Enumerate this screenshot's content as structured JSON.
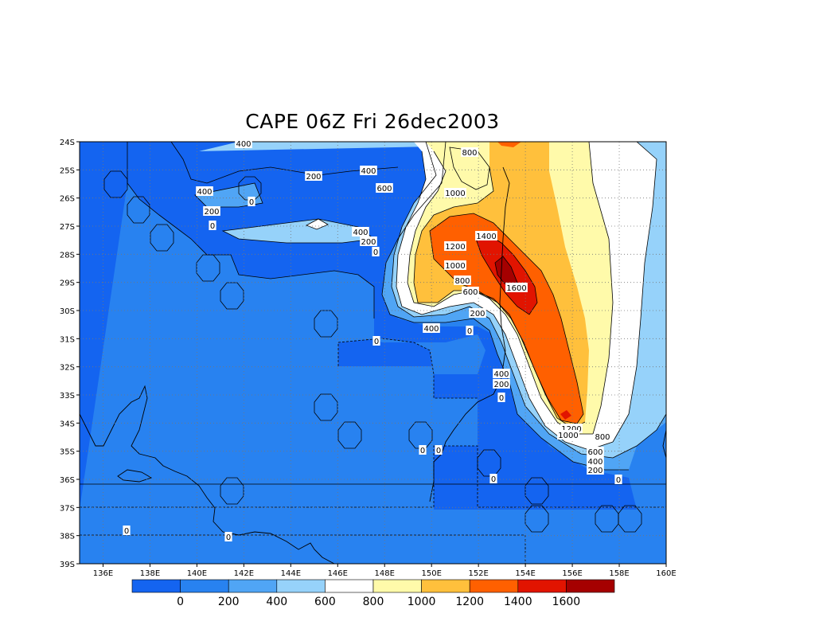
{
  "title": "CAPE 06Z Fri 26dec2003",
  "map": {
    "lat_labels": [
      "24S",
      "25S",
      "26S",
      "27S",
      "28S",
      "29S",
      "30S",
      "31S",
      "32S",
      "33S",
      "34S",
      "35S",
      "36S",
      "37S",
      "38S",
      "39S"
    ],
    "lon_labels": [
      "136E",
      "138E",
      "140E",
      "142E",
      "144E",
      "146E",
      "148E",
      "150E",
      "152E",
      "154E",
      "156E",
      "158E",
      "160E"
    ],
    "contour_labels": [
      {
        "text": "400"
      },
      {
        "text": "200"
      },
      {
        "text": "400"
      },
      {
        "text": "0"
      },
      {
        "text": "200"
      },
      {
        "text": "0"
      },
      {
        "text": "400"
      },
      {
        "text": "600"
      },
      {
        "text": "800"
      },
      {
        "text": "1000"
      },
      {
        "text": "400"
      },
      {
        "text": "200"
      },
      {
        "text": "0"
      },
      {
        "text": "1200"
      },
      {
        "text": "1400"
      },
      {
        "text": "1000"
      },
      {
        "text": "800"
      },
      {
        "text": "1600"
      },
      {
        "text": "600"
      },
      {
        "text": "200"
      },
      {
        "text": "400"
      },
      {
        "text": "0"
      },
      {
        "text": "0"
      },
      {
        "text": "400"
      },
      {
        "text": "200"
      },
      {
        "text": "0"
      },
      {
        "text": "1200"
      },
      {
        "text": "1000"
      },
      {
        "text": "800"
      },
      {
        "text": "600"
      },
      {
        "text": "400"
      },
      {
        "text": "200"
      },
      {
        "text": "0"
      },
      {
        "text": "0"
      },
      {
        "text": "0"
      },
      {
        "text": "0"
      },
      {
        "text": "0"
      },
      {
        "text": "0"
      }
    ]
  },
  "colorbar": {
    "labels": [
      "0",
      "200",
      "400",
      "600",
      "800",
      "1000",
      "1200",
      "1400",
      "1600"
    ],
    "colors": [
      "#1464f0",
      "#2882f0",
      "#50a5f5",
      "#96d2fa",
      "#ffffff",
      "#fffaaa",
      "#ffc03c",
      "#ff6000",
      "#e11400",
      "#a50000"
    ]
  },
  "colors": {
    "bg_min": "#1464f0",
    "lvl_0": "#2882f0",
    "lvl_200": "#50a5f5",
    "lvl_400": "#96d2fa",
    "lvl_600": "#ffffff",
    "lvl_800": "#fffaaa",
    "lvl_1000": "#ffc03c",
    "lvl_1200": "#ff6000",
    "lvl_1400": "#e11400",
    "lvl_1600": "#a50000"
  }
}
